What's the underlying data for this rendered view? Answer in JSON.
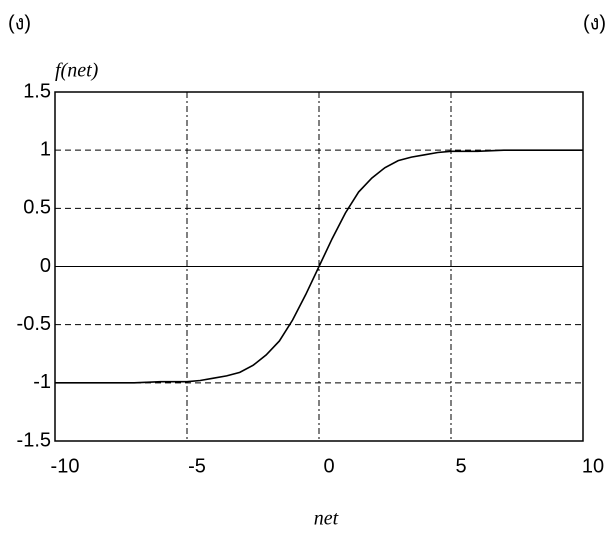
{
  "chart_data": {
    "type": "line",
    "annotations": [
      "(ง)",
      "(ง)"
    ],
    "ylabel": "f(net)",
    "xlabel": "net",
    "x": [
      -10,
      -9,
      -8,
      -7,
      -6,
      -5,
      -4.5,
      -4,
      -3.5,
      -3,
      -2.5,
      -2,
      -1.5,
      -1,
      -0.5,
      0,
      0.5,
      1,
      1.5,
      2,
      2.5,
      3,
      3.5,
      4,
      4.5,
      5,
      6,
      7,
      8,
      9,
      10
    ],
    "series": [
      {
        "name": "f(net)",
        "color": "#000000",
        "values": [
          -1,
          -1,
          -1,
          -1,
          -0.99,
          -0.99,
          -0.98,
          -0.96,
          -0.94,
          -0.91,
          -0.85,
          -0.76,
          -0.64,
          -0.46,
          -0.24,
          0,
          0.24,
          0.46,
          0.64,
          0.76,
          0.85,
          0.91,
          0.94,
          0.96,
          0.98,
          0.99,
          0.99,
          1,
          1,
          1,
          1
        ]
      }
    ],
    "xlim": [
      -10,
      10
    ],
    "xticks": [
      -10,
      -5,
      0,
      5,
      10
    ],
    "ylim": [
      -1.5,
      1.5
    ],
    "yticks": [
      -1.5,
      -1,
      -0.5,
      0,
      0.5,
      1,
      1.5
    ],
    "grid": true
  }
}
